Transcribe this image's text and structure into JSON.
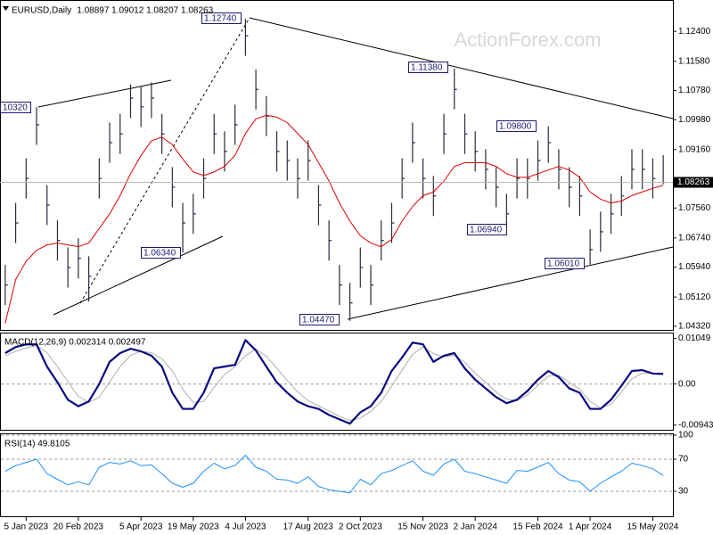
{
  "chart_data": [
    {
      "type": "ohlc",
      "title": "EURUSD,Daily",
      "subtitle": "1.08897 1.09012 1.08207 1.08263",
      "watermark": "ActionForex.com",
      "categories": [
        null,
        null,
        "5 Jan 2023",
        null,
        null,
        null,
        null,
        "20 Feb 2023",
        null,
        null,
        null,
        null,
        null,
        "5 Apr 2023",
        null,
        null,
        null,
        null,
        "19 May 2023",
        null,
        null,
        null,
        null,
        "4 Jul 2023",
        null,
        null,
        null,
        null,
        null,
        "17 Aug 2023",
        null,
        null,
        null,
        null,
        "2 Oct 2023",
        null,
        null,
        null,
        null,
        null,
        "15 Nov 2023",
        null,
        null,
        null,
        null,
        "2 Jan 2024",
        null,
        null,
        null,
        null,
        null,
        "15 Feb 2024",
        null,
        null,
        null,
        null,
        "1 Apr 2024",
        null,
        null,
        null,
        null,
        null,
        "15 May 2024",
        null
      ],
      "ylim": [
        1.0422,
        1.1321
      ],
      "yticks": [
        {
          "value": 1.124,
          "label": "1.12400"
        },
        {
          "value": 1.1158,
          "label": "1.11580"
        },
        {
          "value": 1.1078,
          "label": "1.10780"
        },
        {
          "value": 1.0998,
          "label": "1.09980"
        },
        {
          "value": 1.0916,
          "label": "1.09160"
        },
        {
          "value": 1.0756,
          "label": "1.07560"
        },
        {
          "value": 1.0674,
          "label": "1.06740"
        },
        {
          "value": 1.0594,
          "label": "1.05940"
        },
        {
          "value": 1.0512,
          "label": "1.05120"
        },
        {
          "value": 1.0432,
          "label": "1.04320"
        }
      ],
      "last_price": {
        "value": 1.08263,
        "label": "1.08263"
      },
      "annotations": [
        "10320",
        "1.12740",
        "1.06340",
        "1.04470",
        "1.11380",
        "1.09800",
        "1.06940",
        "1.06010"
      ],
      "series": [
        {
          "color": "#2b2b3b",
          "high": [
            1.06,
            1.077,
            1.0892,
            1.1032,
            1.0819,
            1.0722,
            1.0648,
            1.0673,
            1.0624,
            1.0892,
            1.099,
            1.1014,
            1.1095,
            1.1088,
            1.11,
            1.1014,
            1.0868,
            1.077,
            1.0795,
            1.0892,
            1.1014,
            1.0966,
            1.1039,
            1.1274,
            1.1136,
            1.1063,
            1.0966,
            1.0941,
            1.0892,
            1.0941,
            1.0819,
            1.0722,
            1.06,
            1.0551,
            1.0648,
            1.06,
            1.0722,
            1.077,
            1.0892,
            1.099,
            1.0892,
            1.0844,
            1.1014,
            1.1138,
            1.1014,
            1.0966,
            1.0917,
            1.0868,
            1.0795,
            1.0892,
            1.0892,
            1.0941,
            1.098,
            1.0917,
            1.0868,
            1.0844,
            1.0697,
            1.0746,
            1.0795,
            1.0844,
            1.0917,
            1.0917,
            1.0892,
            1.0901
          ],
          "low": [
            1.049,
            1.066,
            1.0782,
            1.0929,
            1.0709,
            1.0612,
            1.0538,
            1.0563,
            1.05,
            1.0782,
            1.088,
            1.0904,
            1.1002,
            1.0978,
            1.1002,
            1.0904,
            1.0758,
            1.0634,
            1.0685,
            1.0782,
            1.0904,
            1.0856,
            1.0929,
            1.1173,
            1.1026,
            1.0953,
            1.0856,
            1.0831,
            1.0782,
            1.0831,
            1.0709,
            1.0612,
            1.049,
            1.0447,
            1.0538,
            1.049,
            1.0612,
            1.066,
            1.0782,
            1.088,
            1.0782,
            1.0734,
            1.0904,
            1.1026,
            1.0904,
            1.0856,
            1.0807,
            1.0758,
            1.0694,
            1.0782,
            1.0782,
            1.0831,
            1.088,
            1.0807,
            1.0758,
            1.0734,
            1.0601,
            1.0636,
            1.0685,
            1.0734,
            1.0807,
            1.0807,
            1.0782,
            1.0821
          ],
          "values": [
            1.0545,
            1.0715,
            1.0837,
            1.0984,
            1.0764,
            1.0667,
            1.0593,
            1.0618,
            1.0569,
            1.0837,
            1.0935,
            1.0959,
            1.1057,
            1.1033,
            1.1057,
            1.0959,
            1.0813,
            1.0715,
            1.074,
            1.0837,
            1.0959,
            1.0911,
            1.0984,
            1.1228,
            1.1081,
            1.1008,
            1.0911,
            1.0886,
            1.0837,
            1.0886,
            1.0764,
            1.0667,
            1.0545,
            1.0496,
            1.0593,
            1.0545,
            1.0667,
            1.0715,
            1.0837,
            1.0935,
            1.0837,
            1.0789,
            1.0959,
            1.1081,
            1.0959,
            1.0911,
            1.0862,
            1.0813,
            1.074,
            1.0837,
            1.0837,
            1.0886,
            1.0935,
            1.0862,
            1.0813,
            1.0789,
            1.0642,
            1.0691,
            1.074,
            1.0789,
            1.0862,
            1.0862,
            1.0837,
            1.08263
          ]
        },
        {
          "color": "#e00000",
          "values": [
            1.044,
            1.056,
            1.061,
            1.064,
            1.0655,
            1.066,
            1.0655,
            1.065,
            1.066,
            1.07,
            1.074,
            1.079,
            1.085,
            1.09,
            1.094,
            1.095,
            1.093,
            1.089,
            1.0855,
            1.0845,
            1.0855,
            1.087,
            1.09,
            1.096,
            1.1,
            1.101,
            1.1005,
            1.099,
            1.096,
            1.093,
            1.088,
            1.083,
            1.077,
            1.072,
            1.068,
            1.066,
            1.065,
            1.067,
            1.072,
            1.076,
            1.079,
            1.08,
            1.083,
            1.087,
            1.088,
            1.088,
            1.088,
            1.087,
            1.085,
            1.084,
            1.084,
            1.085,
            1.086,
            1.087,
            1.086,
            1.084,
            1.08,
            1.078,
            1.077,
            1.0775,
            1.079,
            1.08,
            1.081,
            1.0818
          ]
        }
      ]
    },
    {
      "type": "line",
      "title": "MACD(12,26,9) 0.002314 0.002497",
      "zero_line": true,
      "ylim": [
        -0.0105,
        0.0116
      ],
      "yticks": [
        0.01049,
        {
          "value": 0,
          "label": "0.00"
        },
        -0.009435
      ],
      "series": [
        {
          "color": "#0a0a80",
          "width": 2.2,
          "values": [
            0.0071,
            0.0085,
            0.0091,
            0.0091,
            0.004,
            0.0004,
            -0.0036,
            -0.0051,
            -0.004,
            0,
            0.0051,
            0.0071,
            0.0081,
            0.0075,
            0.0065,
            0.004,
            -0.002,
            -0.0057,
            -0.0057,
            -0.002,
            0.0036,
            0.004,
            0.0044,
            0.0101,
            0.0077,
            0.004,
            0.0004,
            -0.002,
            -0.004,
            -0.0051,
            -0.0057,
            -0.0071,
            -0.0081,
            -0.0091,
            -0.0065,
            -0.0051,
            -0.002,
            0.003,
            0.0061,
            0.0095,
            0.0091,
            0.0051,
            0.0065,
            0.0071,
            0.0036,
            0.001,
            -0.001,
            -0.003,
            -0.0044,
            -0.0036,
            -0.0016,
            0.001,
            0.003,
            0.0016,
            -0.001,
            -0.002,
            -0.0057,
            -0.0057,
            -0.0036,
            -0.0004,
            0.003,
            0.0032,
            0.0024,
            0.002314
          ]
        },
        {
          "color": "#b0b0b0",
          "width": 1,
          "values": [
            0.0065,
            0.0075,
            0.0083,
            0.0088,
            0.0072,
            0.004,
            0.0005,
            -0.0028,
            -0.0042,
            -0.003,
            0.0005,
            0.004,
            0.0066,
            0.0075,
            0.0072,
            0.0058,
            0.003,
            -0.0012,
            -0.0042,
            -0.004,
            -0.0008,
            0.0022,
            0.004,
            0.0065,
            0.008,
            0.0064,
            0.0036,
            0.0008,
            -0.0018,
            -0.0038,
            -0.005,
            -0.0062,
            -0.0074,
            -0.0084,
            -0.0078,
            -0.0063,
            -0.004,
            -0.0005,
            0.0032,
            0.0068,
            0.0085,
            0.007,
            0.0062,
            0.0066,
            0.005,
            0.0025,
            0.0004,
            -0.0018,
            -0.0035,
            -0.0038,
            -0.0025,
            -0.0003,
            0.0018,
            0.002,
            0.0004,
            -0.0012,
            -0.004,
            -0.0055,
            -0.0046,
            -0.0018,
            0.0012,
            0.0025,
            0.0025,
            0.002497
          ]
        }
      ]
    },
    {
      "type": "line",
      "title": "RSI(14) 49.8105",
      "grid": true,
      "ylim": [
        0,
        100
      ],
      "yticks": [
        100,
        70,
        30
      ],
      "series": [
        {
          "color": "#1e90ff",
          "width": 1,
          "values": [
            55,
            62,
            66,
            70,
            52,
            45,
            38,
            42,
            38,
            60,
            66,
            64,
            68,
            62,
            63,
            52,
            40,
            35,
            40,
            55,
            65,
            58,
            62,
            75,
            60,
            55,
            45,
            44,
            40,
            48,
            36,
            32,
            30,
            28,
            45,
            38,
            52,
            56,
            62,
            68,
            55,
            50,
            64,
            70,
            55,
            52,
            48,
            44,
            40,
            56,
            55,
            60,
            66,
            52,
            44,
            42,
            30,
            40,
            48,
            55,
            65,
            62,
            58,
            49.8105
          ]
        }
      ]
    }
  ]
}
